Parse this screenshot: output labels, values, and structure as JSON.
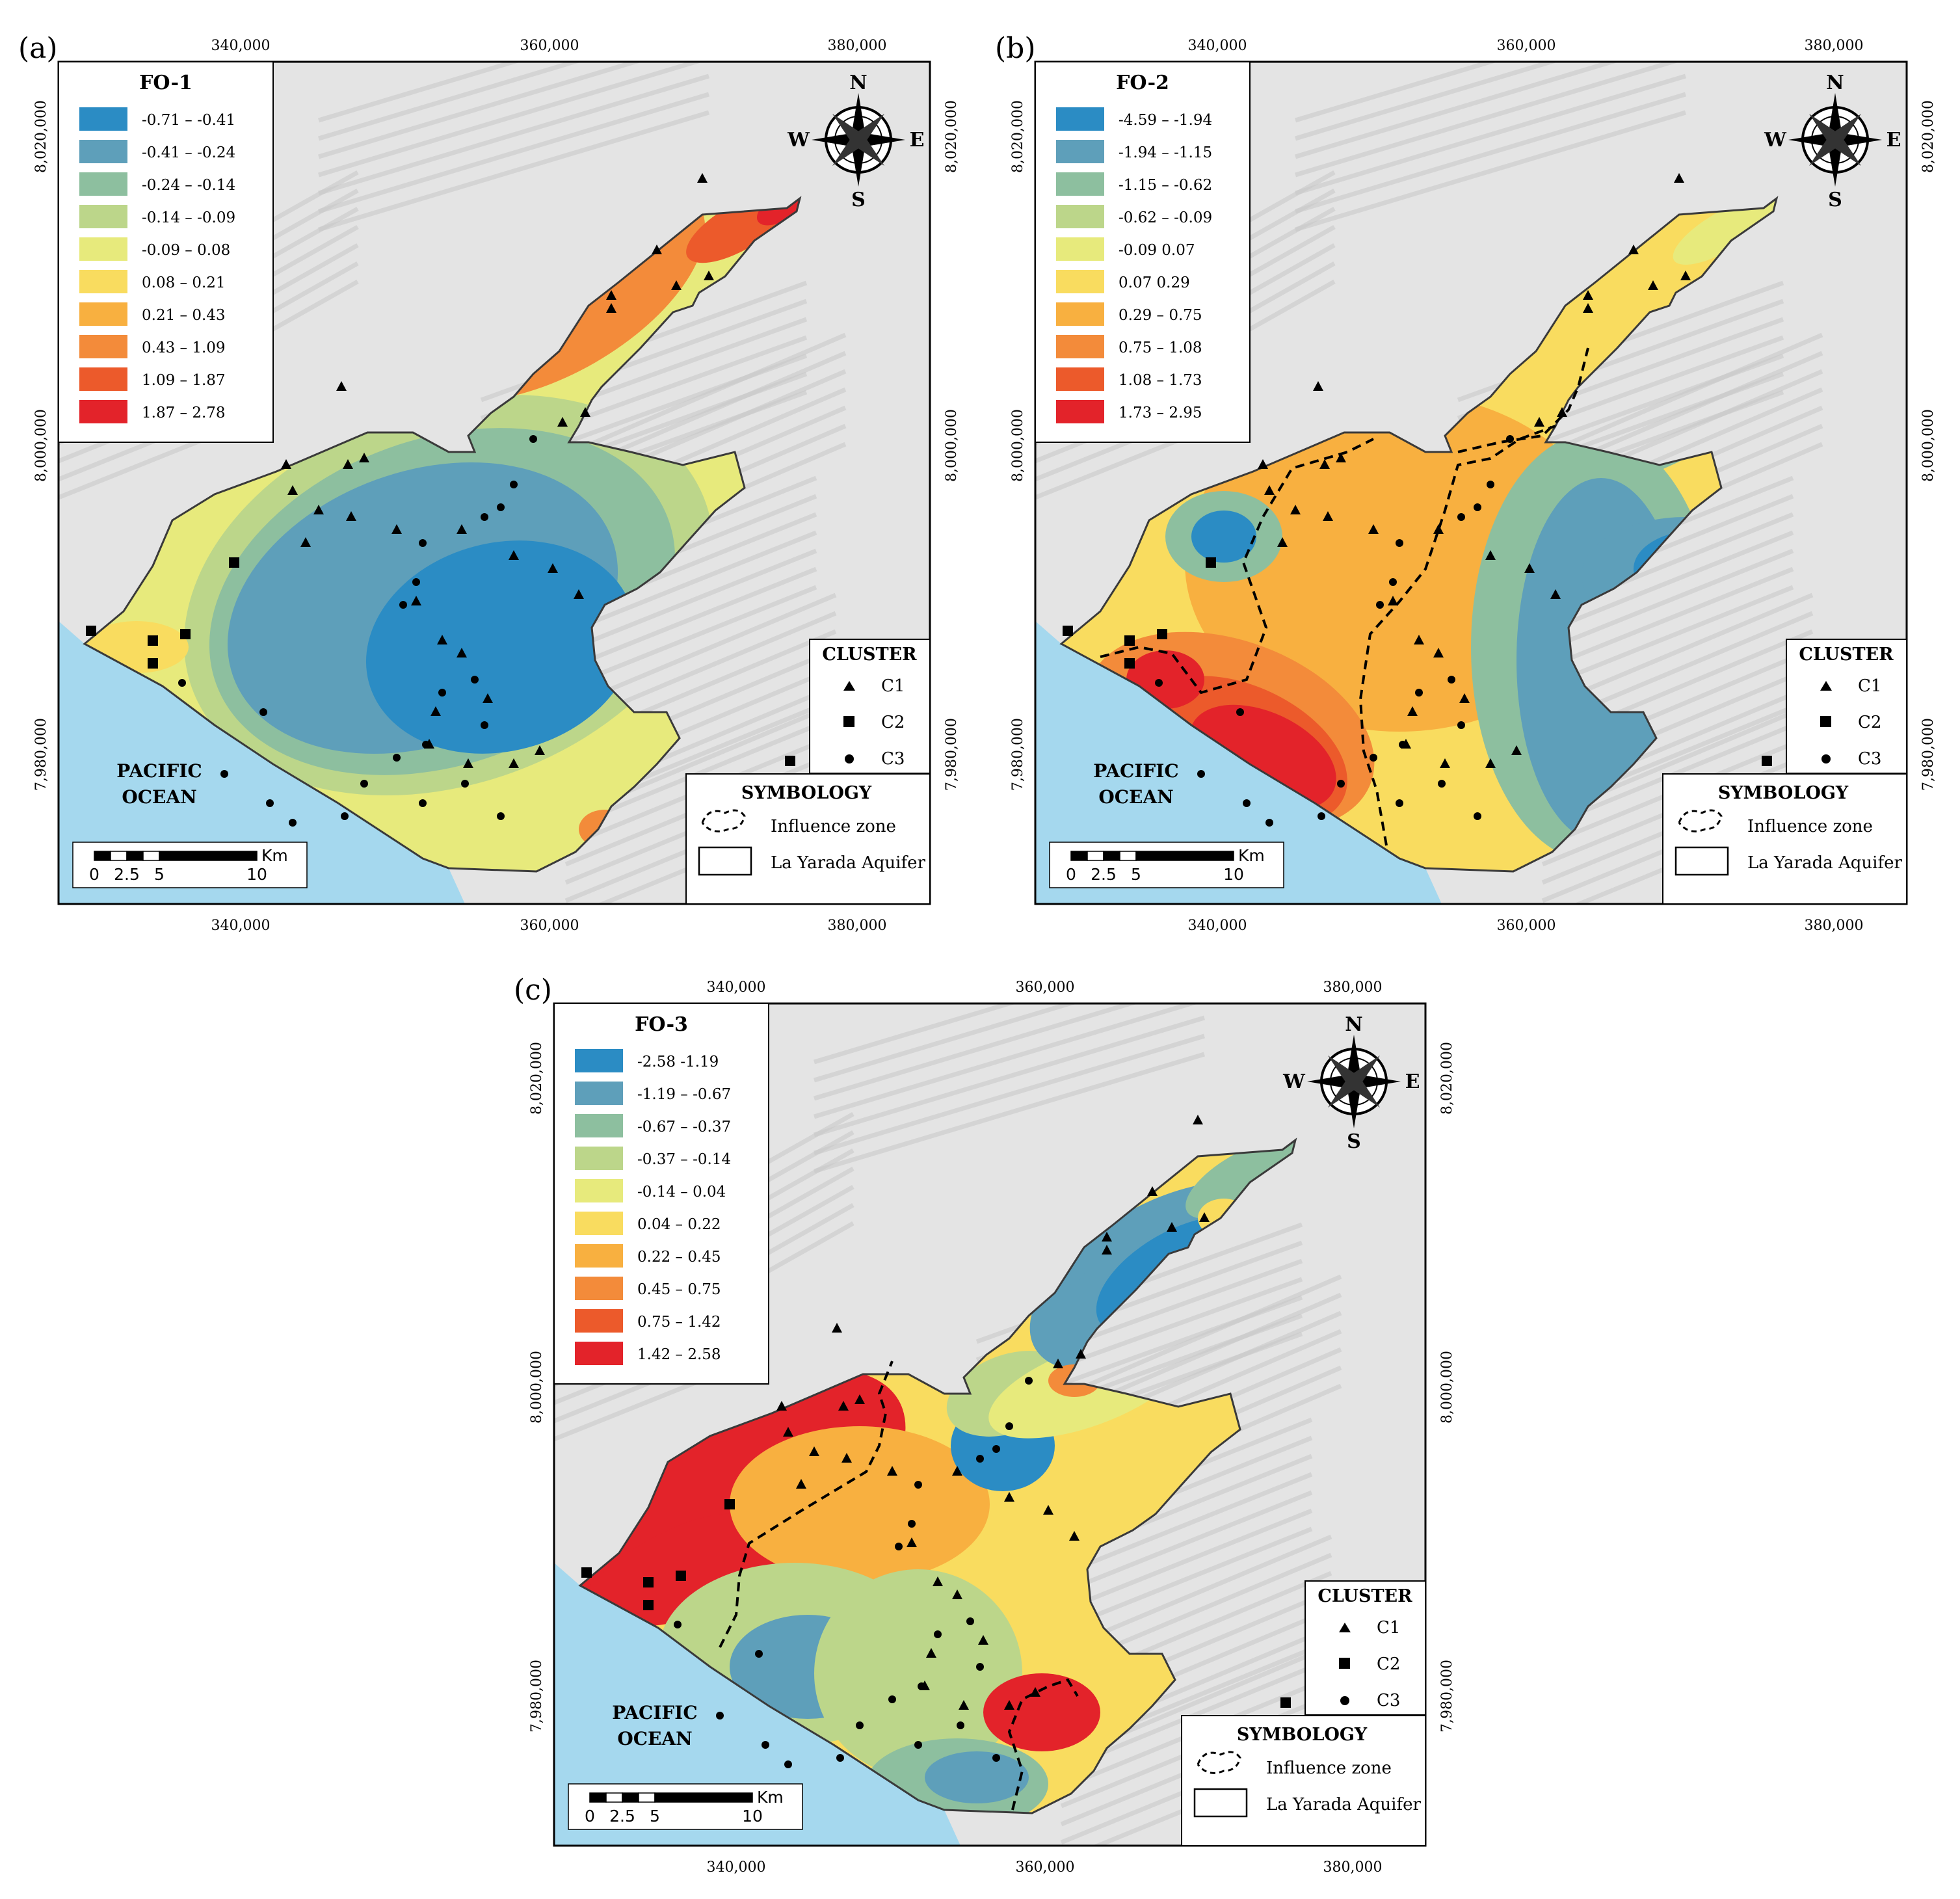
{
  "panels": [
    {
      "label": "(a)",
      "legend_title": "FO-1",
      "classes": [
        {
          "range": "-0.71 – -0.41",
          "color": "#2b8cc4"
        },
        {
          "range": "-0.41 – -0.24",
          "color": "#5e9fba"
        },
        {
          "range": "-0.24 – -0.14",
          "color": "#8dbf9f"
        },
        {
          "range": "-0.14 – -0.09",
          "color": "#bcd68a"
        },
        {
          "range": "-0.09 – 0.08",
          "color": "#e7ea7c"
        },
        {
          "range": "0.08 – 0.21",
          "color": "#f9dc5f"
        },
        {
          "range": "0.21 – 0.43",
          "color": "#f8b040"
        },
        {
          "range": "0.43 – 1.09",
          "color": "#f38b3a"
        },
        {
          "range": "1.09 – 1.87",
          "color": "#ec5a2b"
        },
        {
          "range": "1.87 – 2.78",
          "color": "#e3232a"
        }
      ]
    },
    {
      "label": "(b)",
      "legend_title": "FO-2",
      "classes": [
        {
          "range": "-4.59 – -1.94",
          "color": "#2b8cc4"
        },
        {
          "range": "-1.94 – -1.15",
          "color": "#5e9fba"
        },
        {
          "range": "-1.15 – -0.62",
          "color": "#8dbf9f"
        },
        {
          "range": "-0.62 – -0.09",
          "color": "#bcd68a"
        },
        {
          "range": "-0.09 0.07",
          "color": "#e7ea7c"
        },
        {
          "range": "0.07 0.29",
          "color": "#f9dc5f"
        },
        {
          "range": "0.29 – 0.75",
          "color": "#f8b040"
        },
        {
          "range": "0.75 – 1.08",
          "color": "#f38b3a"
        },
        {
          "range": "1.08 – 1.73",
          "color": "#ec5a2b"
        },
        {
          "range": "1.73 – 2.95",
          "color": "#e3232a"
        }
      ]
    },
    {
      "label": "(c)",
      "legend_title": "FO-3",
      "classes": [
        {
          "range": "-2.58 -1.19",
          "color": "#2b8cc4"
        },
        {
          "range": "-1.19 – -0.67",
          "color": "#5e9fba"
        },
        {
          "range": "-0.67 – -0.37",
          "color": "#8dbf9f"
        },
        {
          "range": "-0.37 – -0.14",
          "color": "#bcd68a"
        },
        {
          "range": "-0.14 – 0.04",
          "color": "#e7ea7c"
        },
        {
          "range": "0.04 – 0.22",
          "color": "#f9dc5f"
        },
        {
          "range": "0.22 – 0.45",
          "color": "#f8b040"
        },
        {
          "range": "0.45 – 0.75",
          "color": "#f38b3a"
        },
        {
          "range": "0.75 – 1.42",
          "color": "#ec5a2b"
        },
        {
          "range": "1.42 – 2.58",
          "color": "#e3232a"
        }
      ]
    }
  ],
  "x_ticks": [
    "340,000",
    "360,000",
    "380,000"
  ],
  "y_ticks": [
    "8,020,000",
    "8,000,000",
    "7,980,000"
  ],
  "ocean_label": [
    "PACIFIC",
    "OCEAN"
  ],
  "cluster_title": "CLUSTER",
  "cluster_items": [
    "C1",
    "C2",
    "C3"
  ],
  "symbology_title": "SYMBOLOGY",
  "symbology_items": [
    "Influence zone",
    "La Yarada Aquifer"
  ],
  "scale_unit": "Km",
  "scale_labels": [
    "0",
    "2.5",
    "5",
    "10"
  ],
  "compass": {
    "n": "N",
    "s": "S",
    "e": "E",
    "w": "W"
  },
  "colors": {
    "ocean": "#a5d8ee",
    "terrain": "#e4e4e4",
    "terrain_dark": "#c8c8c8",
    "frame": "#000000"
  }
}
